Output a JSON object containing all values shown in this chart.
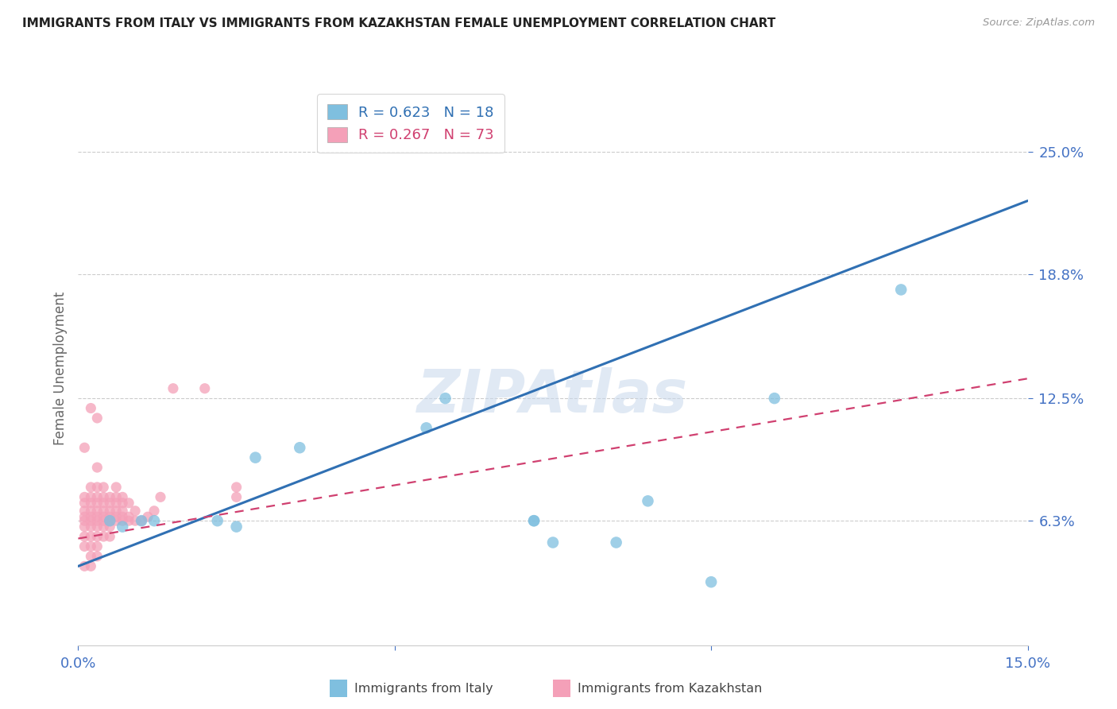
{
  "title": "IMMIGRANTS FROM ITALY VS IMMIGRANTS FROM KAZAKHSTAN FEMALE UNEMPLOYMENT CORRELATION CHART",
  "source": "Source: ZipAtlas.com",
  "ylabel": "Female Unemployment",
  "legend_label_blue": "Immigrants from Italy",
  "legend_label_pink": "Immigrants from Kazakhstan",
  "R_blue": 0.623,
  "N_blue": 18,
  "R_pink": 0.267,
  "N_pink": 73,
  "xmin": 0.0,
  "xmax": 0.15,
  "ymin": 0.0,
  "ymax": 0.28,
  "yticks": [
    0.063,
    0.125,
    0.188,
    0.25
  ],
  "ytick_labels": [
    "6.3%",
    "12.5%",
    "18.8%",
    "25.0%"
  ],
  "xticks": [
    0.0,
    0.05,
    0.1,
    0.15
  ],
  "xtick_labels": [
    "0.0%",
    "",
    "",
    "15.0%"
  ],
  "watermark": "ZIPAtlas",
  "blue_color": "#7fbfdf",
  "blue_line_color": "#3070b3",
  "pink_color": "#f4a0b8",
  "pink_line_color": "#d04070",
  "blue_line_x0": 0.0,
  "blue_line_y0": 0.04,
  "blue_line_x1": 0.15,
  "blue_line_y1": 0.225,
  "pink_line_x0": 0.0,
  "pink_line_y0": 0.054,
  "pink_line_x1": 0.15,
  "pink_line_y1": 0.135,
  "blue_scatter": [
    [
      0.005,
      0.063
    ],
    [
      0.007,
      0.06
    ],
    [
      0.01,
      0.063
    ],
    [
      0.012,
      0.063
    ],
    [
      0.022,
      0.063
    ],
    [
      0.025,
      0.06
    ],
    [
      0.028,
      0.095
    ],
    [
      0.035,
      0.1
    ],
    [
      0.055,
      0.11
    ],
    [
      0.058,
      0.125
    ],
    [
      0.072,
      0.063
    ],
    [
      0.072,
      0.063
    ],
    [
      0.075,
      0.052
    ],
    [
      0.085,
      0.052
    ],
    [
      0.09,
      0.073
    ],
    [
      0.1,
      0.032
    ],
    [
      0.11,
      0.125
    ],
    [
      0.13,
      0.18
    ]
  ],
  "pink_scatter": [
    [
      0.001,
      0.04
    ],
    [
      0.001,
      0.05
    ],
    [
      0.001,
      0.055
    ],
    [
      0.001,
      0.06
    ],
    [
      0.001,
      0.063
    ],
    [
      0.001,
      0.065
    ],
    [
      0.001,
      0.068
    ],
    [
      0.001,
      0.072
    ],
    [
      0.001,
      0.075
    ],
    [
      0.001,
      0.1
    ],
    [
      0.002,
      0.04
    ],
    [
      0.002,
      0.045
    ],
    [
      0.002,
      0.05
    ],
    [
      0.002,
      0.055
    ],
    [
      0.002,
      0.06
    ],
    [
      0.002,
      0.063
    ],
    [
      0.002,
      0.065
    ],
    [
      0.002,
      0.068
    ],
    [
      0.002,
      0.072
    ],
    [
      0.002,
      0.075
    ],
    [
      0.002,
      0.08
    ],
    [
      0.003,
      0.045
    ],
    [
      0.003,
      0.05
    ],
    [
      0.003,
      0.055
    ],
    [
      0.003,
      0.06
    ],
    [
      0.003,
      0.063
    ],
    [
      0.003,
      0.065
    ],
    [
      0.003,
      0.068
    ],
    [
      0.003,
      0.072
    ],
    [
      0.003,
      0.075
    ],
    [
      0.003,
      0.08
    ],
    [
      0.003,
      0.115
    ],
    [
      0.004,
      0.055
    ],
    [
      0.004,
      0.06
    ],
    [
      0.004,
      0.063
    ],
    [
      0.004,
      0.065
    ],
    [
      0.004,
      0.068
    ],
    [
      0.004,
      0.072
    ],
    [
      0.004,
      0.075
    ],
    [
      0.004,
      0.08
    ],
    [
      0.005,
      0.055
    ],
    [
      0.005,
      0.06
    ],
    [
      0.005,
      0.063
    ],
    [
      0.005,
      0.065
    ],
    [
      0.005,
      0.068
    ],
    [
      0.005,
      0.072
    ],
    [
      0.005,
      0.075
    ],
    [
      0.006,
      0.063
    ],
    [
      0.006,
      0.065
    ],
    [
      0.006,
      0.068
    ],
    [
      0.006,
      0.072
    ],
    [
      0.006,
      0.075
    ],
    [
      0.006,
      0.08
    ],
    [
      0.007,
      0.063
    ],
    [
      0.007,
      0.065
    ],
    [
      0.007,
      0.068
    ],
    [
      0.007,
      0.072
    ],
    [
      0.007,
      0.075
    ],
    [
      0.008,
      0.063
    ],
    [
      0.008,
      0.065
    ],
    [
      0.008,
      0.072
    ],
    [
      0.009,
      0.063
    ],
    [
      0.009,
      0.068
    ],
    [
      0.01,
      0.063
    ],
    [
      0.011,
      0.065
    ],
    [
      0.012,
      0.068
    ],
    [
      0.013,
      0.075
    ],
    [
      0.015,
      0.13
    ],
    [
      0.02,
      0.13
    ],
    [
      0.025,
      0.075
    ],
    [
      0.025,
      0.08
    ],
    [
      0.002,
      0.12
    ],
    [
      0.003,
      0.09
    ]
  ],
  "title_color": "#222222",
  "axis_label_color": "#666666",
  "tick_color": "#4472c4",
  "background_color": "#ffffff",
  "grid_color": "#cccccc"
}
